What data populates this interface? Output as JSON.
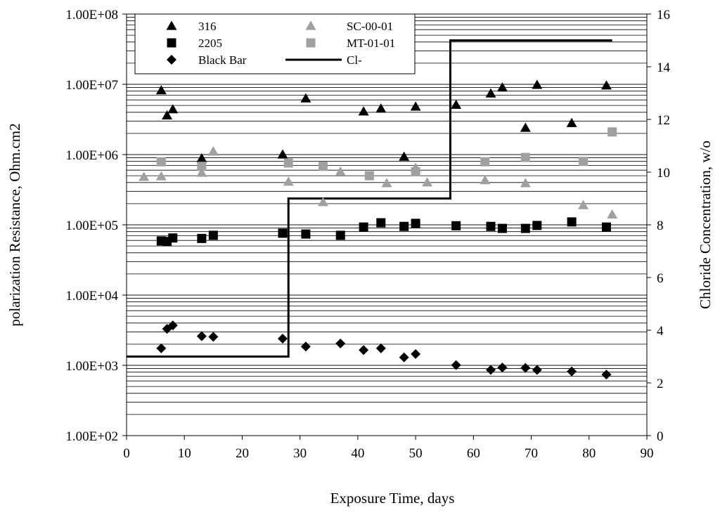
{
  "chart_data": {
    "type": "scatter",
    "xlabel": "Exposure Time, days",
    "ylabel_left": "polarization Resistance, Ohm.cm2",
    "ylabel_right": "Chloride Concentration, w/o",
    "x_ticks": [
      "0",
      "10",
      "20",
      "30",
      "40",
      "50",
      "60",
      "70",
      "80",
      "90"
    ],
    "xlim": [
      0,
      90
    ],
    "y_left_ticks": [
      "1.00E+02",
      "1.00E+03",
      "1.00E+04",
      "1.00E+05",
      "1.00E+06",
      "1.00E+07",
      "1.00E+08"
    ],
    "ylim_left": [
      100,
      100000000
    ],
    "y_left_scale": "log",
    "y_right_ticks": [
      "0",
      "2",
      "4",
      "6",
      "8",
      "10",
      "12",
      "14",
      "16"
    ],
    "ylim_right": [
      0,
      16
    ],
    "grid": "horizontal minor log gridlines",
    "legend_position": "top-left",
    "series": [
      {
        "name": "316",
        "marker": "triangle",
        "color": "#000000",
        "axis": "left",
        "points": [
          [
            6,
            8200000
          ],
          [
            7,
            3600000
          ],
          [
            8,
            4400000
          ],
          [
            13,
            880000
          ],
          [
            15,
            1100000
          ],
          [
            27,
            1000000
          ],
          [
            31,
            6300000
          ],
          [
            41,
            4100000
          ],
          [
            44,
            4500000
          ],
          [
            48,
            930000
          ],
          [
            50,
            4800000
          ],
          [
            57,
            5100000
          ],
          [
            63,
            7400000
          ],
          [
            65,
            9000000
          ],
          [
            69,
            2400000
          ],
          [
            71,
            9800000
          ],
          [
            77,
            2800000
          ],
          [
            83,
            9600000
          ]
        ]
      },
      {
        "name": "2205",
        "marker": "square",
        "color": "#000000",
        "axis": "left",
        "points": [
          [
            6,
            59000
          ],
          [
            7,
            58000
          ],
          [
            8,
            65000
          ],
          [
            13,
            64000
          ],
          [
            15,
            71000
          ],
          [
            27,
            76000
          ],
          [
            31,
            74000
          ],
          [
            37,
            71000
          ],
          [
            41,
            93000
          ],
          [
            44,
            107000
          ],
          [
            48,
            95000
          ],
          [
            50,
            105000
          ],
          [
            57,
            97000
          ],
          [
            63,
            95000
          ],
          [
            65,
            89000
          ],
          [
            69,
            89000
          ],
          [
            71,
            98000
          ],
          [
            77,
            110000
          ],
          [
            83,
            93000
          ]
        ]
      },
      {
        "name": "Black Bar",
        "marker": "diamond",
        "color": "#000000",
        "axis": "left",
        "points": [
          [
            6,
            1750
          ],
          [
            7,
            3300
          ],
          [
            8,
            3700
          ],
          [
            13,
            2600
          ],
          [
            15,
            2550
          ],
          [
            27,
            2400
          ],
          [
            31,
            1850
          ],
          [
            37,
            2050
          ],
          [
            41,
            1650
          ],
          [
            44,
            1750
          ],
          [
            48,
            1300
          ],
          [
            50,
            1450
          ],
          [
            57,
            1010
          ],
          [
            63,
            860
          ],
          [
            65,
            930
          ],
          [
            69,
            920
          ],
          [
            71,
            860
          ],
          [
            77,
            820
          ],
          [
            83,
            740
          ]
        ]
      },
      {
        "name": "SC-00-01",
        "marker": "triangle",
        "color": "#a0a0a0",
        "axis": "left",
        "points": [
          [
            3,
            480000
          ],
          [
            6,
            490000
          ],
          [
            13,
            550000
          ],
          [
            15,
            1100000
          ],
          [
            28,
            410000
          ],
          [
            34,
            210000
          ],
          [
            37,
            570000
          ],
          [
            45,
            390000
          ],
          [
            50,
            650000
          ],
          [
            52,
            400000
          ],
          [
            62,
            430000
          ],
          [
            69,
            390000
          ],
          [
            79,
            190000
          ],
          [
            84,
            140000
          ]
        ]
      },
      {
        "name": "MT-01-01",
        "marker": "square",
        "color": "#a0a0a0",
        "axis": "left",
        "points": [
          [
            6,
            790000
          ],
          [
            13,
            680000
          ],
          [
            28,
            760000
          ],
          [
            34,
            680000
          ],
          [
            42,
            500000
          ],
          [
            50,
            570000
          ],
          [
            62,
            790000
          ],
          [
            69,
            910000
          ],
          [
            79,
            800000
          ],
          [
            84,
            2100000
          ]
        ]
      },
      {
        "name": "Cl-",
        "marker": "step-line",
        "color": "#000000",
        "axis": "right",
        "points": [
          [
            0,
            3
          ],
          [
            28,
            3
          ],
          [
            28,
            9
          ],
          [
            56,
            9
          ],
          [
            56,
            15
          ],
          [
            84,
            15
          ]
        ]
      }
    ]
  }
}
